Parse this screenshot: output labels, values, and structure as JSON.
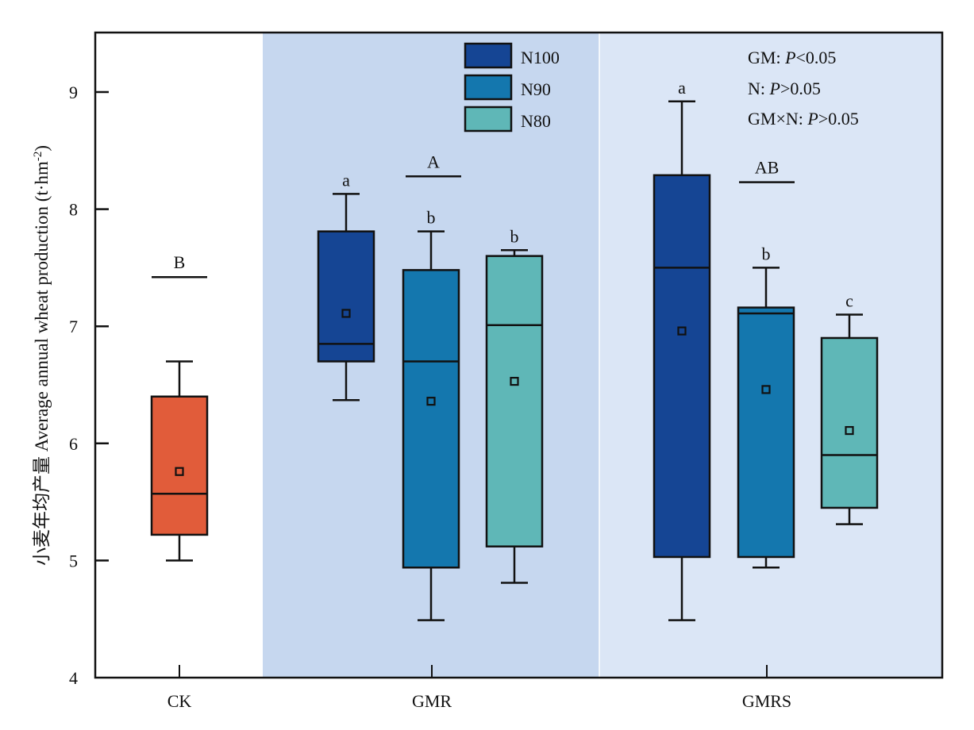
{
  "chart_data": {
    "type": "box",
    "title": "",
    "xlabel": "",
    "ylabel": "小麦年均产量 Average annual wheat production (t·hm",
    "ylabel_sup": "-2",
    "ylabel_close": ")",
    "ylim": [
      4,
      9.5
    ],
    "yticks": [
      4,
      5,
      6,
      7,
      8,
      9
    ],
    "ytick_labels": [
      "4",
      "5",
      "6",
      "7",
      "8",
      "9"
    ],
    "categories": [
      "CK",
      "GMR",
      "GMRS"
    ],
    "region_colors": [
      "#ffffff",
      "#c6d7ef",
      "#dbe6f6"
    ],
    "legend": [
      {
        "label": "N100",
        "color": "#154594"
      },
      {
        "label": "N90",
        "color": "#1477ae"
      },
      {
        "label": "N80",
        "color": "#5fb7b7"
      }
    ],
    "stats_text": [
      {
        "prefix": "GM: ",
        "p": "P",
        "suffix": "<0.05"
      },
      {
        "prefix": "N: ",
        "p": "P",
        "suffix": ">0.05"
      },
      {
        "prefix": "GM×N: ",
        "p": "P",
        "suffix": ">0.05"
      }
    ],
    "boxes": [
      {
        "group": "CK",
        "series": "CK",
        "color": "#e15c3a",
        "whisker_low": 5.0,
        "q1": 5.22,
        "median": 5.57,
        "q3": 6.4,
        "whisker_high": 6.7,
        "mean": 5.76,
        "letter": ""
      },
      {
        "group": "GMR",
        "series": "N100",
        "color": "#154594",
        "whisker_low": 6.37,
        "q1": 6.7,
        "median": 6.85,
        "q3": 7.81,
        "whisker_high": 8.13,
        "mean": 7.11,
        "letter": "a"
      },
      {
        "group": "GMR",
        "series": "N90",
        "color": "#1477ae",
        "whisker_low": 4.49,
        "q1": 4.94,
        "median": 6.7,
        "q3": 7.48,
        "whisker_high": 7.81,
        "mean": 6.36,
        "letter": "b"
      },
      {
        "group": "GMR",
        "series": "N80",
        "color": "#5fb7b7",
        "whisker_low": 4.81,
        "q1": 5.12,
        "median": 7.01,
        "q3": 7.6,
        "whisker_high": 7.65,
        "mean": 6.53,
        "letter": "b"
      },
      {
        "group": "GMRS",
        "series": "N100",
        "color": "#154594",
        "whisker_low": 4.49,
        "q1": 5.03,
        "median": 7.5,
        "q3": 8.29,
        "whisker_high": 8.92,
        "mean": 6.96,
        "letter": "a"
      },
      {
        "group": "GMRS",
        "series": "N90",
        "color": "#1477ae",
        "whisker_low": 4.94,
        "q1": 5.03,
        "median": 7.11,
        "q3": 7.16,
        "whisker_high": 7.5,
        "mean": 6.46,
        "letter": "b"
      },
      {
        "group": "GMRS",
        "series": "N80",
        "color": "#5fb7b7",
        "whisker_low": 5.31,
        "q1": 5.45,
        "median": 5.9,
        "q3": 6.9,
        "whisker_high": 7.1,
        "mean": 6.11,
        "letter": "c"
      }
    ],
    "group_letters": [
      {
        "group": "CK",
        "letter": "B",
        "level": 7.42
      },
      {
        "group": "GMR",
        "letter": "A",
        "level": 8.28
      },
      {
        "group": "GMRS",
        "letter": "AB",
        "level": 8.23
      }
    ]
  }
}
